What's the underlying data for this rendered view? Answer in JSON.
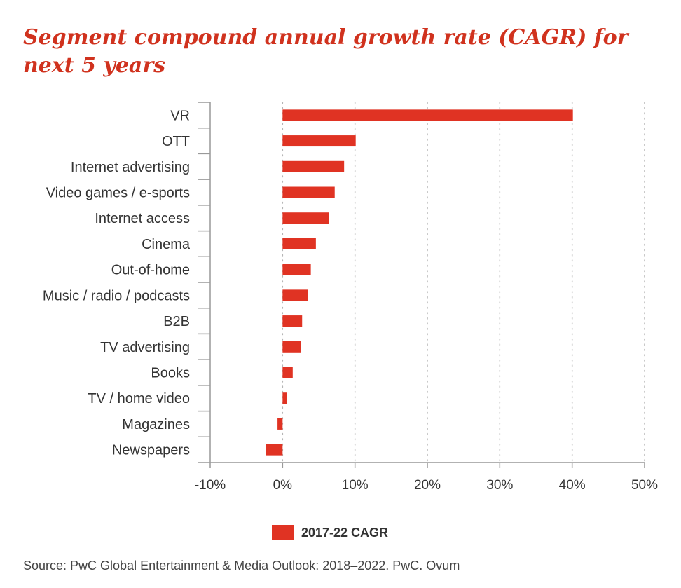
{
  "title": "Segment compound annual growth rate (CAGR) for next 5 years",
  "source": "Source: PwC Global Entertainment & Media Outlook: 2018–2022. PwC. Ovum",
  "colors": {
    "bar": "#e03323",
    "title": "#d0321e",
    "axis": "#999999",
    "grid": "#b5b5b5",
    "text": "#333333"
  },
  "chart_data": {
    "type": "bar",
    "orientation": "horizontal",
    "categories": [
      "VR",
      "OTT",
      "Internet advertising",
      "Video games / e-sports",
      "Internet access",
      "Cinema",
      "Out-of-home",
      "Music / radio / podcasts",
      "B2B",
      "TV advertising",
      "Books",
      "TV / home video",
      "Magazines",
      "Newspapers"
    ],
    "series": [
      {
        "name": "2017-22 CAGR",
        "values": [
          40.1,
          10.1,
          8.5,
          7.2,
          6.4,
          4.6,
          3.9,
          3.5,
          2.7,
          2.5,
          1.4,
          0.6,
          -0.7,
          -2.3
        ]
      }
    ],
    "xlim": [
      -10,
      50
    ],
    "xticks": [
      -10,
      0,
      10,
      20,
      30,
      40,
      50
    ],
    "tick_labels": [
      "-10%",
      "0%",
      "10%",
      "20%",
      "30%",
      "40%",
      "50%"
    ],
    "grid": "vertical dotted",
    "legend_position": "bottom"
  }
}
